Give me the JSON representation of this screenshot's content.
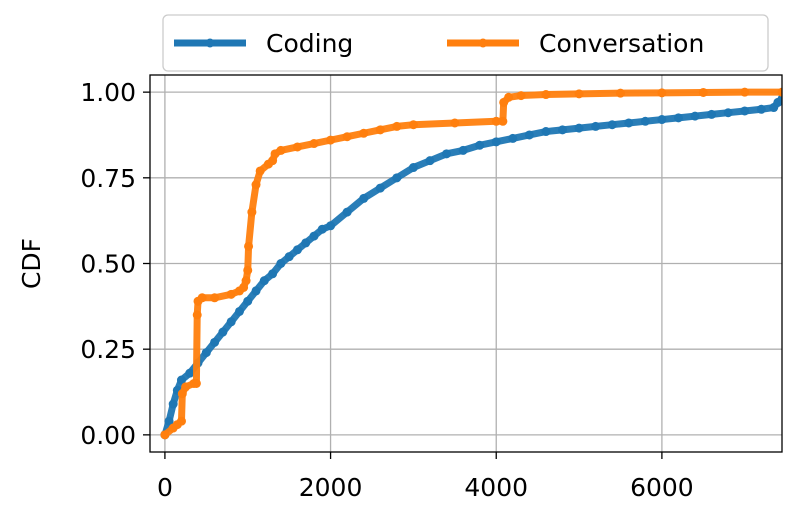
{
  "chart_data": {
    "type": "line",
    "title": "",
    "xlabel": "",
    "ylabel": "CDF",
    "xlim": [
      -180,
      7450
    ],
    "ylim": [
      -0.05,
      1.05
    ],
    "x_ticks": [
      0,
      2000,
      4000,
      6000
    ],
    "y_ticks": [
      0.0,
      0.25,
      0.5,
      0.75,
      1.0
    ],
    "x_tick_labels": [
      "0",
      "2000",
      "4000",
      "6000"
    ],
    "y_tick_labels": [
      "0.00",
      "0.25",
      "0.50",
      "0.75",
      "1.00"
    ],
    "grid": true,
    "legend_position": "top-center",
    "series": [
      {
        "name": "Coding",
        "color": "#1f77b4",
        "x": [
          0,
          50,
          100,
          150,
          200,
          300,
          400,
          500,
          600,
          700,
          800,
          900,
          1000,
          1100,
          1200,
          1300,
          1400,
          1500,
          1600,
          1700,
          1800,
          1900,
          2000,
          2200,
          2400,
          2600,
          2800,
          3000,
          3200,
          3400,
          3600,
          3800,
          4000,
          4200,
          4400,
          4600,
          4800,
          5000,
          5200,
          5400,
          5600,
          5800,
          6000,
          6200,
          6400,
          6600,
          6800,
          7000,
          7200,
          7350,
          7400,
          7450
        ],
        "y": [
          0.0,
          0.04,
          0.09,
          0.13,
          0.16,
          0.18,
          0.21,
          0.24,
          0.27,
          0.3,
          0.33,
          0.36,
          0.39,
          0.42,
          0.45,
          0.47,
          0.5,
          0.52,
          0.54,
          0.56,
          0.58,
          0.6,
          0.61,
          0.65,
          0.69,
          0.72,
          0.75,
          0.78,
          0.8,
          0.82,
          0.83,
          0.845,
          0.855,
          0.865,
          0.875,
          0.885,
          0.89,
          0.895,
          0.9,
          0.905,
          0.91,
          0.915,
          0.92,
          0.925,
          0.93,
          0.935,
          0.94,
          0.945,
          0.95,
          0.955,
          0.97,
          0.98
        ]
      },
      {
        "name": "Conversation",
        "color": "#ff7f0e",
        "x": [
          0,
          100,
          150,
          200,
          210,
          250,
          350,
          380,
          390,
          400,
          450,
          600,
          800,
          900,
          950,
          980,
          1000,
          1010,
          1050,
          1100,
          1150,
          1250,
          1300,
          1330,
          1400,
          1600,
          1800,
          2000,
          2200,
          2400,
          2600,
          2800,
          3000,
          3500,
          4000,
          4080,
          4090,
          4150,
          4300,
          4600,
          5000,
          5500,
          6000,
          6500,
          7000,
          7450
        ],
        "y": [
          0.0,
          0.02,
          0.03,
          0.04,
          0.12,
          0.14,
          0.15,
          0.15,
          0.35,
          0.39,
          0.4,
          0.4,
          0.41,
          0.42,
          0.43,
          0.45,
          0.48,
          0.55,
          0.65,
          0.73,
          0.77,
          0.79,
          0.8,
          0.82,
          0.83,
          0.84,
          0.85,
          0.86,
          0.87,
          0.88,
          0.89,
          0.9,
          0.905,
          0.91,
          0.915,
          0.915,
          0.97,
          0.985,
          0.99,
          0.993,
          0.995,
          0.997,
          0.998,
          0.999,
          1.0,
          1.0
        ]
      }
    ]
  }
}
